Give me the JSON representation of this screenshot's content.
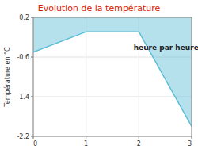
{
  "chart_data": {
    "type": "area",
    "title": "Evolution de la température",
    "y_label": "Température en °C",
    "x": [
      0,
      1,
      2,
      3
    ],
    "values": [
      -0.5,
      -0.09,
      -0.09,
      -2.0
    ],
    "color": "#5bbcd6",
    "xlim": [
      0,
      3
    ],
    "xticks": [
      0,
      1,
      2,
      3
    ],
    "ylim": [
      -2.2,
      0.2
    ],
    "yticks": [
      0.2,
      -0.6,
      -1.4,
      -2.2
    ],
    "grid": true,
    "annotations": [
      {
        "text": "heure par heure",
        "x": 1.9,
        "y": -0.42
      }
    ]
  }
}
